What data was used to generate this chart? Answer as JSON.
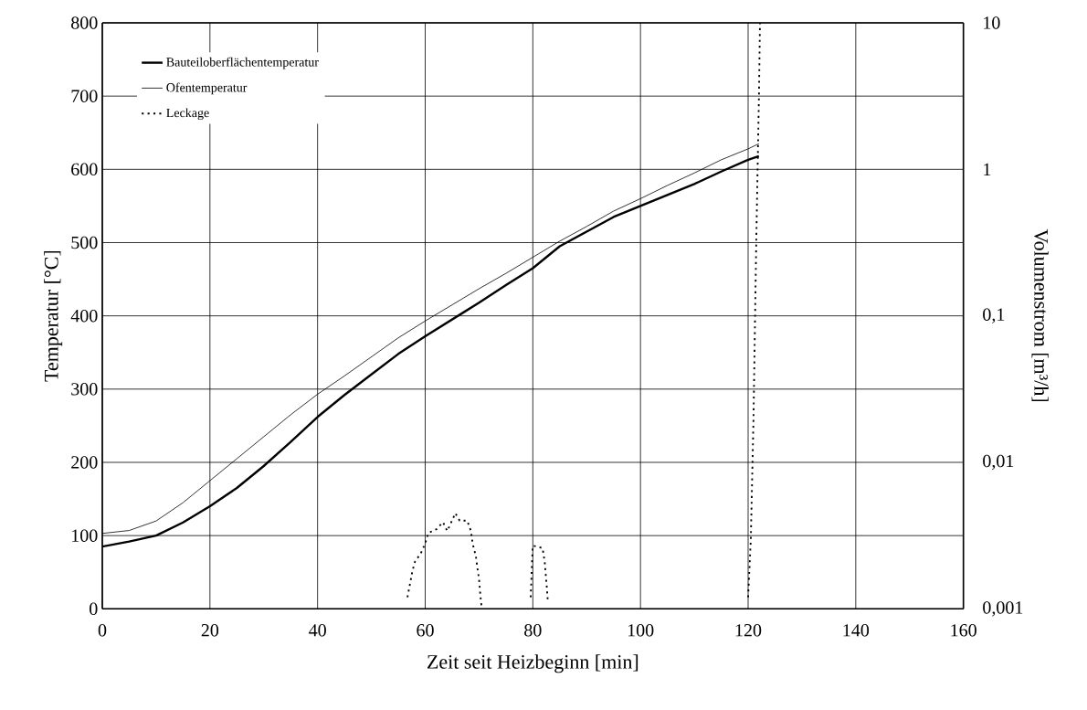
{
  "chart_data": {
    "type": "line",
    "xlabel": "Zeit seit Heizbeginn [min]",
    "ylabel": "Temperatur [°C]",
    "y2label": "Volumenstrom [m³/h]",
    "xlim": [
      0,
      160
    ],
    "xticks": [
      0,
      20,
      40,
      60,
      80,
      100,
      120,
      140,
      160
    ],
    "ylim": [
      0,
      800
    ],
    "yticks": [
      0,
      100,
      200,
      300,
      400,
      500,
      600,
      700,
      800
    ],
    "y2lim": [
      0.001,
      10
    ],
    "y2ticks": [
      {
        "value": 0.001,
        "label": "0,001"
      },
      {
        "value": 0.01,
        "label": "0,01"
      },
      {
        "value": 0.1,
        "label": "0,1"
      },
      {
        "value": 1,
        "label": "1"
      },
      {
        "value": 10,
        "label": "10"
      }
    ],
    "log": "y2",
    "grid": true,
    "legend": "top left",
    "series": [
      {
        "name": "Bauteiloberflächentemperatur",
        "color": "#000000",
        "line_style": "solid",
        "x": [
          0,
          5,
          10,
          15,
          20,
          25,
          30,
          35,
          40,
          45,
          50,
          55,
          60,
          65,
          70,
          75,
          80,
          85,
          90,
          95,
          100,
          105,
          110,
          115,
          120,
          122
        ],
        "values": [
          85,
          92,
          100,
          118,
          140,
          165,
          195,
          228,
          262,
          292,
          320,
          348,
          372,
          395,
          418,
          442,
          465,
          495,
          515,
          535,
          550,
          565,
          580,
          597,
          613,
          618
        ]
      },
      {
        "name": "Ofentemperatur",
        "color": "#000000",
        "line_style": "solid",
        "x": [
          0,
          5,
          10,
          15,
          20,
          25,
          30,
          35,
          40,
          45,
          50,
          55,
          60,
          65,
          70,
          75,
          80,
          85,
          90,
          95,
          100,
          105,
          110,
          115,
          120,
          122
        ],
        "values": [
          103,
          107,
          120,
          145,
          175,
          205,
          235,
          265,
          293,
          318,
          344,
          370,
          393,
          415,
          437,
          458,
          480,
          502,
          522,
          543,
          560,
          578,
          595,
          613,
          628,
          635
        ]
      },
      {
        "name": "Leckage",
        "color": "#000000",
        "line_style": "dotted",
        "axis": "y2",
        "x": [
          56.7,
          57.2,
          57.6,
          58.1,
          59.2,
          60.0,
          60.6,
          62.1,
          63.3,
          64.1,
          65.6,
          66.4,
          67.8,
          68.5,
          68.8,
          69.4,
          69.7,
          70.0,
          70.2,
          70.5,
          75,
          79.6,
          79.7,
          79.8,
          79.9,
          80.0,
          81.8,
          82.2,
          82.4,
          82.6,
          82.8,
          100,
          120,
          120.5,
          121,
          121.5,
          122,
          122.2
        ],
        "values": [
          0.0012,
          0.0015,
          0.0018,
          0.0021,
          0.0024,
          0.0028,
          0.0033,
          0.0035,
          0.0039,
          0.0034,
          0.0045,
          0.004,
          0.004,
          0.0034,
          0.0028,
          0.0023,
          0.0019,
          0.0016,
          0.0013,
          0.001,
          null,
          0.0012,
          0.0015,
          0.0019,
          0.0023,
          0.0027,
          0.0026,
          0.0021,
          0.0017,
          0.0014,
          0.0011,
          null,
          0.0012,
          0.003,
          0.02,
          0.3,
          3,
          10
        ]
      }
    ]
  }
}
